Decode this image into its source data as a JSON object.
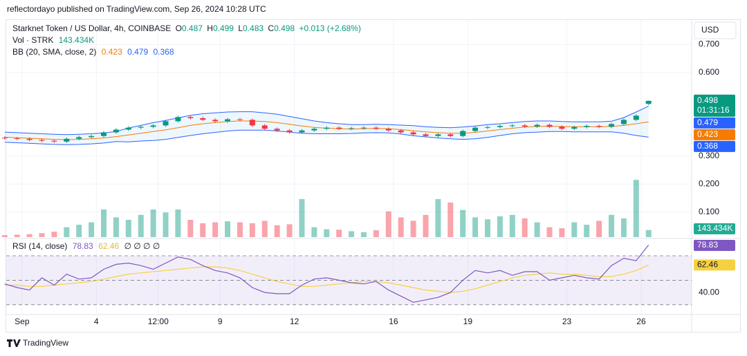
{
  "header": {
    "published": "reflectordayo published on TradingView.com, Sep 26, 2024 10:28 UTC"
  },
  "currency": "USD",
  "countdown": "01:31:16",
  "footer": {
    "brand": "TradingView"
  },
  "chart_data": [
    {
      "type": "candlestick",
      "title": "Starknet Token / US Dollar, 4h, COINBASE",
      "labels": {
        "open": "O",
        "high": "H",
        "low": "L",
        "close": "C"
      },
      "change_label": "+0.013 (+2.68%)",
      "up_color": "#089981",
      "down_color": "#f23645",
      "x": [
        0.3,
        0.8,
        1.3,
        1.8,
        2.3,
        2.8,
        3.3,
        3.8,
        4.3,
        4.8,
        5.3,
        5.8,
        6.3,
        6.8,
        7.3,
        7.8,
        8.3,
        8.8,
        9.3,
        9.8,
        10.3,
        10.8,
        11.3,
        11.8,
        12.3,
        12.8,
        13.3,
        13.8,
        14.3,
        14.8,
        15.3,
        15.8,
        16.3,
        16.8,
        17.3,
        17.8,
        18.3,
        18.8,
        19.3,
        19.8,
        20.3,
        20.8,
        21.3,
        21.8,
        22.3,
        22.8,
        23.3,
        23.8,
        24.3,
        24.8,
        25.3,
        25.8,
        26.3
      ],
      "open": [
        0.366,
        0.364,
        0.362,
        0.358,
        0.355,
        0.352,
        0.362,
        0.368,
        0.372,
        0.385,
        0.395,
        0.402,
        0.405,
        0.41,
        0.425,
        0.44,
        0.436,
        0.43,
        0.425,
        0.432,
        0.43,
        0.41,
        0.398,
        0.392,
        0.385,
        0.392,
        0.398,
        0.402,
        0.398,
        0.4,
        0.402,
        0.398,
        0.392,
        0.385,
        0.378,
        0.372,
        0.378,
        0.372,
        0.39,
        0.402,
        0.404,
        0.408,
        0.41,
        0.406,
        0.412,
        0.405,
        0.398,
        0.404,
        0.408,
        0.405,
        0.415,
        0.43,
        0.487
      ],
      "high": [
        0.371,
        0.369,
        0.367,
        0.363,
        0.36,
        0.367,
        0.373,
        0.377,
        0.39,
        0.4,
        0.407,
        0.41,
        0.415,
        0.43,
        0.445,
        0.445,
        0.441,
        0.435,
        0.437,
        0.437,
        0.435,
        0.415,
        0.403,
        0.397,
        0.397,
        0.403,
        0.407,
        0.407,
        0.405,
        0.407,
        0.407,
        0.403,
        0.397,
        0.39,
        0.383,
        0.383,
        0.383,
        0.395,
        0.407,
        0.409,
        0.413,
        0.415,
        0.415,
        0.417,
        0.417,
        0.41,
        0.409,
        0.413,
        0.413,
        0.42,
        0.435,
        0.45,
        0.499
      ],
      "low": [
        0.359,
        0.357,
        0.353,
        0.35,
        0.347,
        0.347,
        0.357,
        0.363,
        0.367,
        0.38,
        0.39,
        0.397,
        0.4,
        0.405,
        0.42,
        0.431,
        0.425,
        0.42,
        0.42,
        0.425,
        0.405,
        0.393,
        0.387,
        0.38,
        0.38,
        0.387,
        0.393,
        0.393,
        0.393,
        0.395,
        0.393,
        0.387,
        0.38,
        0.373,
        0.367,
        0.367,
        0.367,
        0.367,
        0.385,
        0.397,
        0.399,
        0.403,
        0.401,
        0.401,
        0.4,
        0.393,
        0.393,
        0.399,
        0.4,
        0.4,
        0.41,
        0.425,
        0.483
      ],
      "close": [
        0.364,
        0.362,
        0.358,
        0.355,
        0.352,
        0.362,
        0.368,
        0.372,
        0.385,
        0.395,
        0.402,
        0.405,
        0.41,
        0.425,
        0.44,
        0.436,
        0.43,
        0.425,
        0.432,
        0.43,
        0.41,
        0.398,
        0.392,
        0.385,
        0.392,
        0.398,
        0.402,
        0.398,
        0.4,
        0.402,
        0.398,
        0.392,
        0.385,
        0.378,
        0.372,
        0.378,
        0.372,
        0.39,
        0.402,
        0.404,
        0.408,
        0.41,
        0.406,
        0.412,
        0.405,
        0.398,
        0.404,
        0.408,
        0.405,
        0.415,
        0.43,
        0.445,
        0.498
      ],
      "overlay": {
        "name": "BB (20, SMA, close, 2)",
        "fill": "rgba(33,150,243,0.08)",
        "series": [
          {
            "color": "#2962ff",
            "values": [
              0.386,
              0.384,
              0.382,
              0.38,
              0.378,
              0.377,
              0.378,
              0.38,
              0.383,
              0.388,
              0.401,
              0.41,
              0.42,
              0.428,
              0.437,
              0.446,
              0.452,
              0.455,
              0.458,
              0.459,
              0.459,
              0.455,
              0.45,
              0.442,
              0.434,
              0.426,
              0.42,
              0.416,
              0.413,
              0.413,
              0.414,
              0.413,
              0.411,
              0.409,
              0.405,
              0.403,
              0.402,
              0.404,
              0.408,
              0.413,
              0.416,
              0.42,
              0.424,
              0.426,
              0.426,
              0.424,
              0.423,
              0.423,
              0.423,
              0.425,
              0.438,
              0.458,
              0.479
            ]
          },
          {
            "color": "#f57c00",
            "values": [
              0.368,
              0.366,
              0.364,
              0.362,
              0.36,
              0.359,
              0.36,
              0.362,
              0.365,
              0.37,
              0.376,
              0.382,
              0.388,
              0.394,
              0.402,
              0.41,
              0.416,
              0.42,
              0.424,
              0.426,
              0.426,
              0.424,
              0.42,
              0.414,
              0.408,
              0.403,
              0.4,
              0.398,
              0.397,
              0.398,
              0.399,
              0.398,
              0.395,
              0.391,
              0.387,
              0.384,
              0.382,
              0.382,
              0.385,
              0.39,
              0.395,
              0.4,
              0.404,
              0.406,
              0.407,
              0.406,
              0.405,
              0.405,
              0.405,
              0.406,
              0.41,
              0.416,
              0.423
            ]
          },
          {
            "color": "#2962ff",
            "values": [
              0.35,
              0.348,
              0.346,
              0.344,
              0.342,
              0.341,
              0.342,
              0.344,
              0.347,
              0.352,
              0.351,
              0.354,
              0.356,
              0.36,
              0.367,
              0.374,
              0.38,
              0.385,
              0.39,
              0.393,
              0.393,
              0.393,
              0.39,
              0.386,
              0.382,
              0.38,
              0.38,
              0.38,
              0.381,
              0.383,
              0.384,
              0.383,
              0.379,
              0.373,
              0.369,
              0.365,
              0.362,
              0.36,
              0.362,
              0.367,
              0.374,
              0.38,
              0.384,
              0.386,
              0.388,
              0.388,
              0.387,
              0.387,
              0.387,
              0.387,
              0.382,
              0.374,
              0.368
            ]
          }
        ]
      },
      "xlim": [
        0.39,
        28.04
      ],
      "xticks": [
        {
          "value": 1,
          "label": "Sep"
        },
        4,
        {
          "value": 6.5,
          "label": "12:00"
        },
        9,
        12,
        16,
        19,
        23,
        26
      ],
      "ylim": [
        0,
        0.78
      ],
      "yticks": [
        {
          "value": 0.7,
          "label": "0.700"
        },
        {
          "value": 0.6,
          "label": "0.600"
        },
        {
          "value": 0.3,
          "label": "0.300"
        },
        {
          "value": 0.2,
          "label": "0.200"
        },
        {
          "value": 0.1,
          "label": "0.100"
        }
      ],
      "grid": true
    },
    {
      "type": "bar",
      "name": "Vol · STRK",
      "up_color": "rgba(8,153,129,0.45)",
      "down_color": "rgba(242,54,69,0.45)",
      "label_color": "#22ab94",
      "values": [
        40,
        50,
        60,
        80,
        110,
        200,
        250,
        300,
        560,
        400,
        350,
        450,
        560,
        500,
        560,
        350,
        280,
        300,
        320,
        300,
        280,
        330,
        240,
        260,
        770,
        200,
        160,
        150,
        120,
        100,
        140,
        520,
        400,
        330,
        450,
        770,
        700,
        550,
        400,
        360,
        420,
        450,
        380,
        300,
        200,
        180,
        300,
        250,
        330,
        450,
        380,
        1160,
        143.434
      ],
      "value_labels": [
        null,
        null,
        null,
        null,
        null,
        null,
        null,
        null,
        null,
        null,
        null,
        null,
        null,
        null,
        null,
        null,
        null,
        null,
        null,
        null,
        null,
        null,
        null,
        null,
        null,
        null,
        null,
        null,
        null,
        null,
        null,
        null,
        null,
        null,
        null,
        null,
        null,
        null,
        null,
        null,
        null,
        null,
        null,
        null,
        null,
        null,
        null,
        null,
        null,
        null,
        null,
        null,
        "143.434K"
      ],
      "ylim": [
        0,
        1400
      ]
    },
    {
      "type": "line",
      "title": "RSI (14, close)",
      "inputs_label": "∅ ∅ ∅ ∅",
      "band_color": "rgba(126,87,194,0.1)",
      "series": [
        {
          "color": "#7e57c2",
          "values": [
            47,
            44,
            42,
            52,
            46,
            55,
            51,
            52,
            59,
            63,
            64,
            62,
            59,
            64,
            69,
            67,
            62,
            58,
            56,
            52,
            44,
            40,
            39,
            39,
            46,
            51,
            52,
            50,
            48,
            47,
            49,
            42,
            37,
            32,
            34,
            36,
            40,
            50,
            58,
            56,
            58,
            54,
            57,
            57,
            50,
            52,
            54,
            52,
            51,
            62,
            68,
            66,
            78.83
          ]
        },
        {
          "color": "#f5d142",
          "values": [
            46,
            46,
            45,
            45,
            46,
            47,
            48,
            49,
            51,
            53,
            55,
            56,
            57,
            58,
            59,
            60,
            61,
            61,
            60,
            58,
            55,
            52,
            49,
            47,
            45,
            45,
            46,
            47,
            48,
            49,
            49,
            48,
            46,
            44,
            42,
            41,
            40,
            41,
            43,
            46,
            49,
            52,
            54,
            55,
            56,
            55,
            55,
            54,
            53,
            53,
            55,
            58,
            62.46
          ]
        }
      ],
      "levels": [
        70,
        50,
        30
      ],
      "ylim": [
        22,
        83
      ],
      "yticks": [
        {
          "value": 40,
          "label": "40.00"
        }
      ]
    }
  ]
}
